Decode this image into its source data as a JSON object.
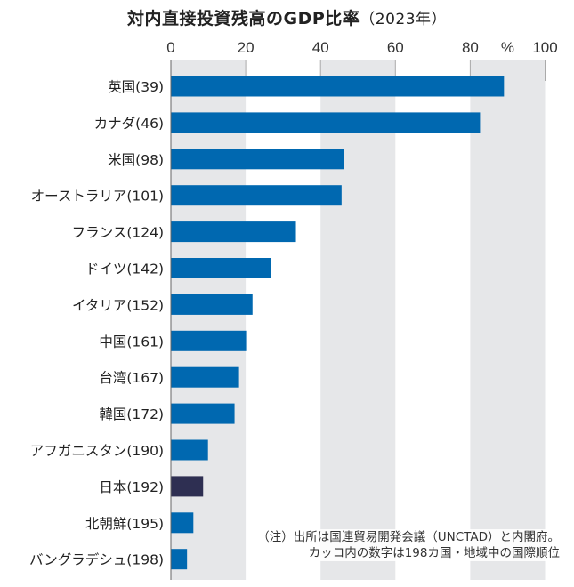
{
  "chart_data": {
    "type": "bar",
    "orientation": "horizontal",
    "title": "対内直接投資残高のGDP比率",
    "subtitle": "（2023年）",
    "unit": "%",
    "xlim": [
      0,
      100
    ],
    "xticks": [
      "0",
      "20",
      "40",
      "60",
      "80",
      "100"
    ],
    "grid": "alternating bands",
    "categories": [
      "英国(39)",
      "カナダ(46)",
      "米国(98)",
      "オーストラリア(101)",
      "フランス(124)",
      "ドイツ(142)",
      "イタリア(152)",
      "中国(161)",
      "台湾(167)",
      "韓国(172)",
      "アフガニスタン(190)",
      "日本(192)",
      "北朝鮮(195)",
      "バングラデシュ(198)"
    ],
    "values": [
      88.9,
      82.5,
      46.2,
      45.5,
      33.3,
      26.7,
      21.7,
      20.0,
      18.1,
      16.9,
      9.8,
      8.5,
      5.9,
      4.2
    ],
    "highlight": "日本(192)",
    "colors": {
      "bar": "#0068b0",
      "highlight": "#2e2f52",
      "band": "#e6e7e9",
      "gridline": "#aaaaaa"
    },
    "note": [
      "（注）出所は国連貿易開発会議（UNCTAD）と内閣府。",
      "カッコ内の数字は198カ国・地域中の国際順位"
    ]
  }
}
